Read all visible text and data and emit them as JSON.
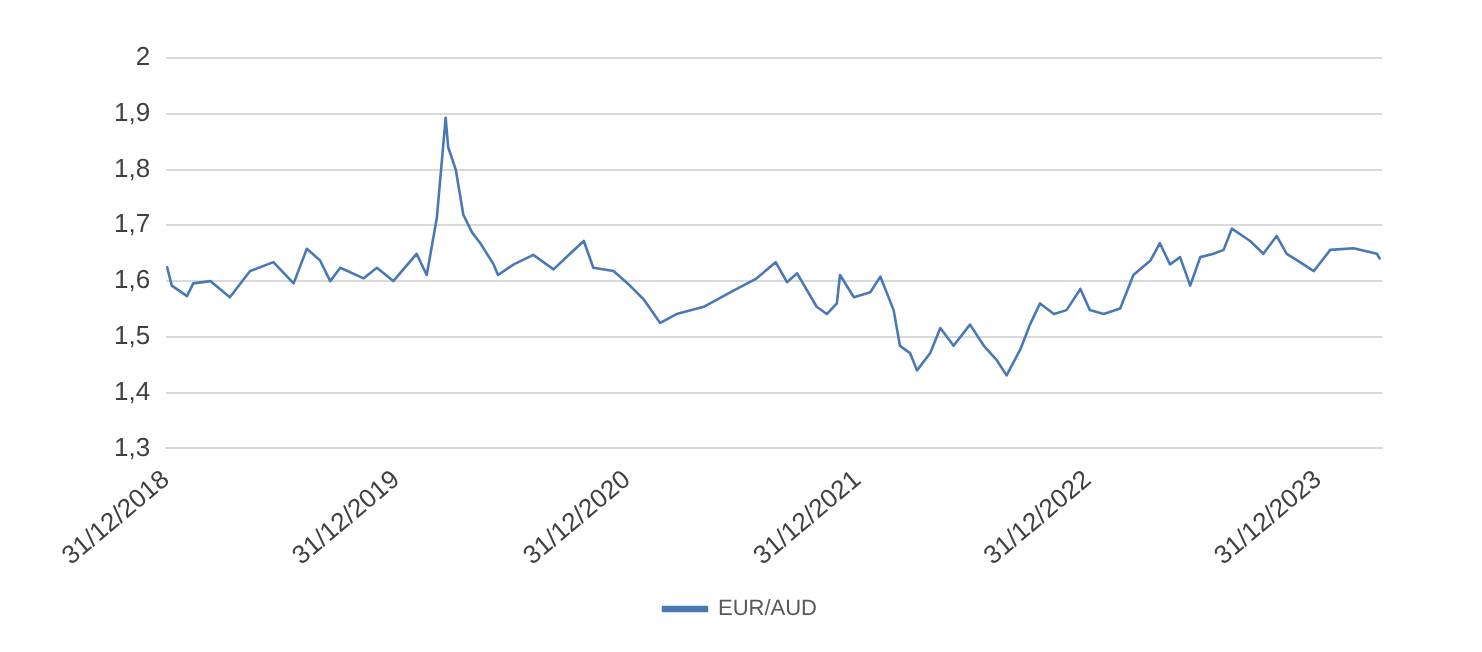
{
  "chart_data": {
    "type": "line",
    "xlim": [
      "2018-12-31",
      "2024-04-10"
    ],
    "ylim": [
      1.3,
      2
    ],
    "xticks": [
      {
        "value": "2018-12-31",
        "label": "31/12/2018"
      },
      {
        "value": "2019-12-31",
        "label": "31/12/2019"
      },
      {
        "value": "2020-12-31",
        "label": "31/12/2020"
      },
      {
        "value": "2021-12-31",
        "label": "31/12/2021"
      },
      {
        "value": "2022-12-31",
        "label": "31/12/2022"
      },
      {
        "value": "2023-12-31",
        "label": "31/12/2023"
      }
    ],
    "yticks": [
      {
        "value": 1.3,
        "label": "1,3"
      },
      {
        "value": 1.4,
        "label": "1,4"
      },
      {
        "value": 1.5,
        "label": "1,5"
      },
      {
        "value": 1.6,
        "label": "1,6"
      },
      {
        "value": 1.7,
        "label": "1,7"
      },
      {
        "value": 1.8,
        "label": "1,8"
      },
      {
        "value": 1.9,
        "label": "1,9"
      },
      2
    ],
    "grid": "y",
    "legend": "bottom",
    "marker": "none",
    "line_style": "solid",
    "series": [
      {
        "name": "EUR/AUD",
        "color": "#4a78b4",
        "x": [
          "2019-01-01",
          "2019-01-09",
          "2019-02-02",
          "2019-02-12",
          "2019-03-11",
          "2019-04-11",
          "2019-05-13",
          "2019-06-19",
          "2019-07-21",
          "2019-08-11",
          "2019-09-01",
          "2019-09-17",
          "2019-10-03",
          "2019-11-09",
          "2019-11-30",
          "2019-12-26",
          "2020-02-01",
          "2020-02-17",
          "2020-03-04",
          "2020-03-18",
          "2020-03-22",
          "2020-04-03",
          "2020-04-15",
          "2020-04-29",
          "2020-05-12",
          "2020-06-02",
          "2020-06-09",
          "2020-07-04",
          "2020-08-04",
          "2020-09-05",
          "2020-10-01",
          "2020-10-23",
          "2020-11-07",
          "2020-12-09",
          "2021-01-04",
          "2021-01-26",
          "2021-02-21",
          "2021-03-19",
          "2021-05-01",
          "2021-06-12",
          "2021-07-24",
          "2021-08-23",
          "2021-09-10",
          "2021-09-26",
          "2021-10-27",
          "2021-11-12",
          "2021-11-28",
          "2021-12-03",
          "2021-12-25",
          "2022-01-20",
          "2022-02-05",
          "2022-02-26",
          "2022-03-08",
          "2022-03-24",
          "2022-04-04",
          "2022-04-25",
          "2022-05-11",
          "2022-06-01",
          "2022-06-27",
          "2022-07-19",
          "2022-08-08",
          "2022-08-24",
          "2022-09-15",
          "2022-09-30",
          "2022-10-16",
          "2022-11-07",
          "2022-11-27",
          "2022-12-19",
          "2023-01-03",
          "2023-01-25",
          "2023-02-20",
          "2023-03-13",
          "2023-04-09",
          "2023-04-24",
          "2023-05-10",
          "2023-05-26",
          "2023-06-11",
          "2023-06-27",
          "2023-07-18",
          "2023-08-03",
          "2023-08-16",
          "2023-09-14",
          "2023-10-05",
          "2023-10-26",
          "2023-11-11",
          "2023-12-02",
          "2023-12-24",
          "2024-01-19",
          "2024-02-25",
          "2024-04-02",
          "2024-04-07"
        ],
        "values": [
          1.627,
          1.592,
          1.573,
          1.596,
          1.6,
          1.571,
          1.618,
          1.634,
          1.596,
          1.658,
          1.637,
          1.6,
          1.624,
          1.605,
          1.624,
          1.6,
          1.649,
          1.611,
          1.713,
          1.893,
          1.84,
          1.8,
          1.719,
          1.687,
          1.668,
          1.63,
          1.611,
          1.63,
          1.647,
          1.621,
          1.649,
          1.672,
          1.624,
          1.618,
          1.592,
          1.567,
          1.525,
          1.541,
          1.554,
          1.58,
          1.605,
          1.634,
          1.598,
          1.614,
          1.554,
          1.541,
          1.56,
          1.611,
          1.571,
          1.58,
          1.608,
          1.548,
          1.484,
          1.471,
          1.44,
          1.471,
          1.516,
          1.484,
          1.522,
          1.484,
          1.459,
          1.431,
          1.478,
          1.522,
          1.56,
          1.541,
          1.548,
          1.586,
          1.548,
          1.541,
          1.551,
          1.611,
          1.637,
          1.668,
          1.63,
          1.643,
          1.592,
          1.643,
          1.649,
          1.656,
          1.694,
          1.672,
          1.649,
          1.681,
          1.649,
          1.634,
          1.618,
          1.656,
          1.659,
          1.649,
          1.639
        ]
      }
    ]
  }
}
